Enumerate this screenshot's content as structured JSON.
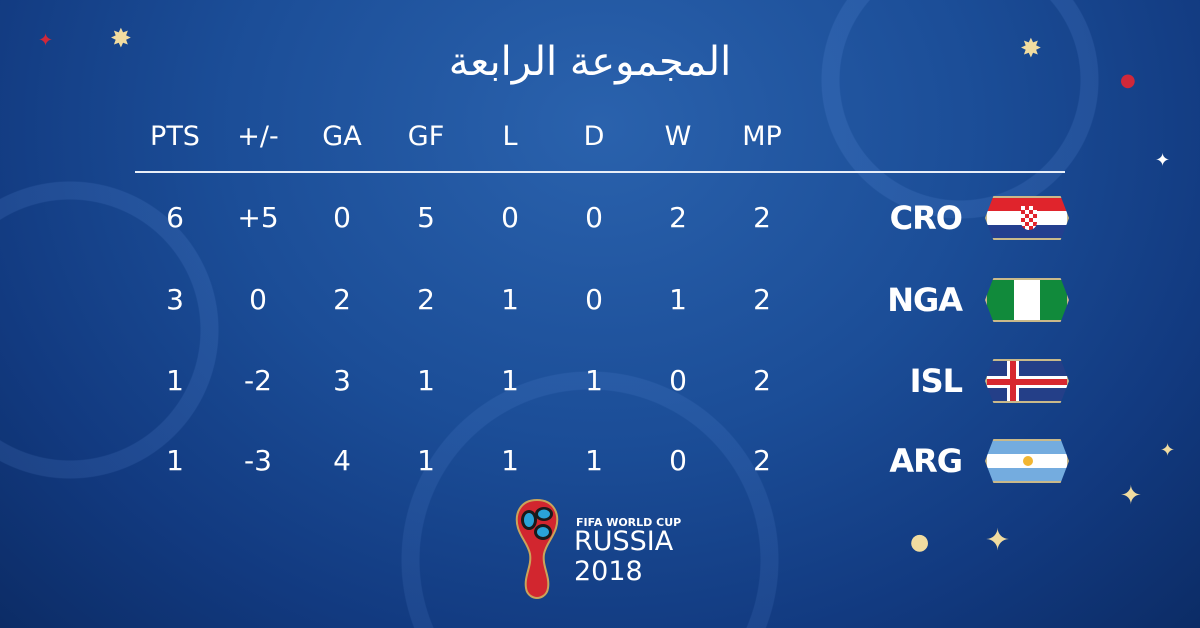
{
  "title": "المجموعة الرابعة",
  "columns": [
    "PTS",
    "+/-",
    "GA",
    "GF",
    "L",
    "D",
    "W",
    "MP"
  ],
  "rows": [
    {
      "team": "CRO",
      "flag": "croatia-flag",
      "values": [
        "6",
        "+5",
        "0",
        "5",
        "0",
        "0",
        "2",
        "2"
      ]
    },
    {
      "team": "NGA",
      "flag": "nigeria-flag",
      "values": [
        "3",
        "0",
        "2",
        "2",
        "1",
        "0",
        "1",
        "2"
      ]
    },
    {
      "team": "ISL",
      "flag": "iceland-flag",
      "values": [
        "1",
        "-2",
        "3",
        "1",
        "1",
        "1",
        "0",
        "2"
      ]
    },
    {
      "team": "ARG",
      "flag": "argentina-flag",
      "values": [
        "1",
        "-3",
        "4",
        "1",
        "1",
        "1",
        "0",
        "2"
      ]
    }
  ],
  "logo": {
    "line1": "FIFA WORLD CUP",
    "line2": "RUSSIA",
    "line3": "2018"
  },
  "colors": {
    "background": "#1b4d97",
    "text": "#ffffff",
    "accent_gold": "#f1dca0"
  }
}
